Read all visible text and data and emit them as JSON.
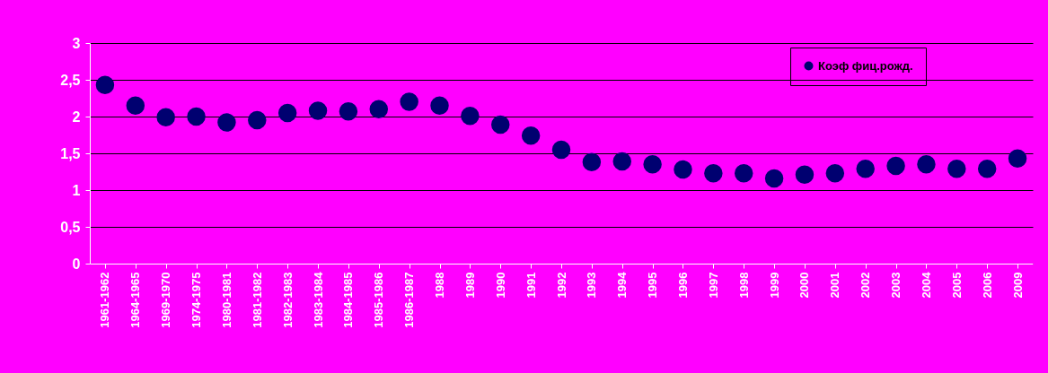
{
  "chart_data": {
    "type": "scatter",
    "marker": "circle",
    "grid": "y",
    "legend": "top right",
    "categories": [
      "1961-1962",
      "1964-1965",
      "1969-1970",
      "1974-1975",
      "1980-1981",
      "1981-1982",
      "1982-1983",
      "1983-1984",
      "1984-1985",
      "1985-1986",
      "1986-1987",
      "1988",
      "1989",
      "1990",
      "1991",
      "1992",
      "1993",
      "1994",
      "1995",
      "1996",
      "1997",
      "1998",
      "1999",
      "2000",
      "2001",
      "2002",
      "2003",
      "2004",
      "2005",
      "2006",
      "2009"
    ],
    "series": [
      {
        "name": "Коэф фиц.рожд.",
        "color": "#000070",
        "values": [
          2.43,
          2.15,
          1.99,
          2.0,
          1.92,
          1.95,
          2.05,
          2.08,
          2.07,
          2.1,
          2.2,
          2.15,
          2.01,
          1.89,
          1.74,
          1.55,
          1.38,
          1.39,
          1.35,
          1.28,
          1.23,
          1.23,
          1.16,
          1.21,
          1.23,
          1.29,
          1.33,
          1.35,
          1.29,
          1.29,
          1.43
        ]
      }
    ],
    "ylim": [
      0,
      3
    ],
    "yticks": [
      0,
      {
        "value": 0.5,
        "label": "0,5"
      },
      1,
      {
        "value": 1.5,
        "label": "1,5"
      },
      2,
      {
        "value": 2.5,
        "label": "2,5"
      },
      3
    ]
  }
}
